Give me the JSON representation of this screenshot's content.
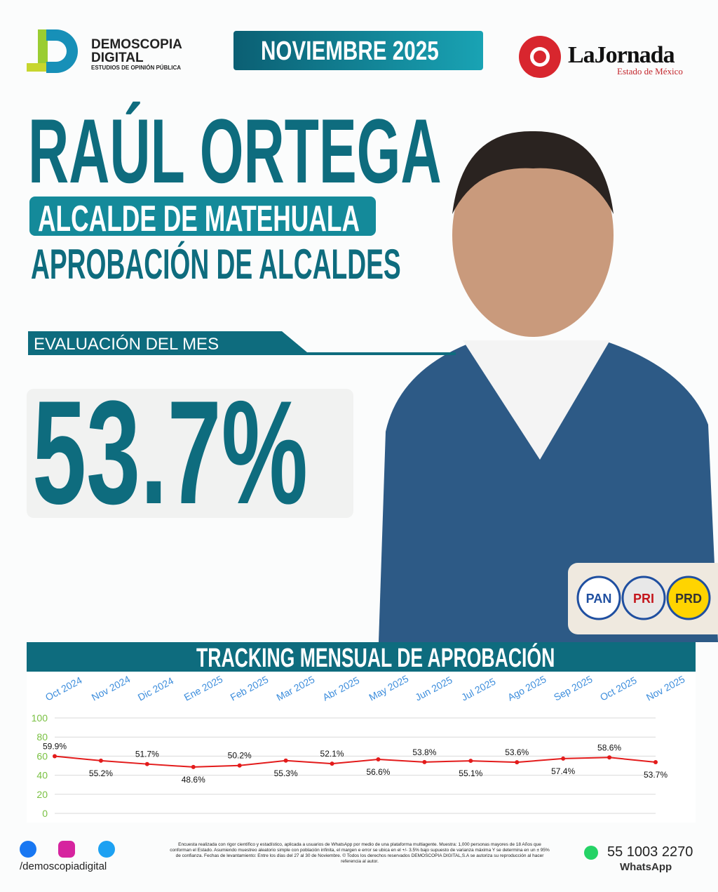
{
  "header": {
    "brand": "DEMOSCOPIA DIGITAL",
    "brand_sub": "ESTUDIOS DE OPINIÓN PÚBLICA",
    "month": "NOVIEMBRE 2025",
    "newspaper": "LaJornada",
    "newspaper_sub": "Estado de México"
  },
  "hero": {
    "name": "RAÚL ORTEGA",
    "role": "ALCALDE DE MATEHUALA",
    "subtitle": "APROBACIÓN DE ALCALDES",
    "label": "EVALUACIÓN DEL MES",
    "score": "53.7%"
  },
  "parties": [
    "PAN",
    "PRI",
    "PRD"
  ],
  "chart_data": {
    "type": "line",
    "title": "TRACKING MENSUAL DE APROBACIÓN",
    "categories": [
      "Oct 2024",
      "Nov 2024",
      "Dic 2024",
      "Ene 2025",
      "Feb 2025",
      "Mar 2025",
      "Abr 2025",
      "May 2025",
      "Jun 2025",
      "Jul 2025",
      "Ago 2025",
      "Sep 2025",
      "Oct 2025",
      "Nov 2025"
    ],
    "series": [
      {
        "name": "Aprobación",
        "color": "#e31b1b",
        "values": [
          59.9,
          55.2,
          51.7,
          48.6,
          50.2,
          55.3,
          52.1,
          56.6,
          53.8,
          55.1,
          53.6,
          57.4,
          58.6,
          53.7
        ],
        "value_labels": [
          "59.9%",
          "55.2%",
          "51.7%",
          "48.6%",
          "50.2%",
          "55.3%",
          "52.1%",
          "56.6%",
          "53.8%",
          "55.1%",
          "53.6%",
          "57.4%",
          "58.6%",
          "53.7%"
        ]
      }
    ],
    "ylim": [
      0,
      100
    ],
    "yticks": [
      0,
      20,
      40,
      60,
      80,
      100
    ],
    "grid": true
  },
  "footer": {
    "social": "/demoscopiadigital",
    "note": "Encuesta realizada con rigor científico y estadístico, aplicada a usuarios de WhatsApp por medio de una plataforma multiagente. Muestra: 1,000 personas mayores de 18 Años que conforman el Estado. Asumiendo muestreo aleatorio simple con población infinita, el margen e error se ubica en el +/- 3.5% bajo supuesto de varianza máxima Y se determina en un ± 95% de confianza. Fechas de levantamiento: Entre los días del 27 al 30 de Noviembre. © Todos los derechos reservados DEMOSCOPIA DIGITAL,S.A se autoriza su reproducción al hacer referencia al autor.",
    "phone": "55 1003 2270",
    "phone_label": "WhatsApp"
  }
}
